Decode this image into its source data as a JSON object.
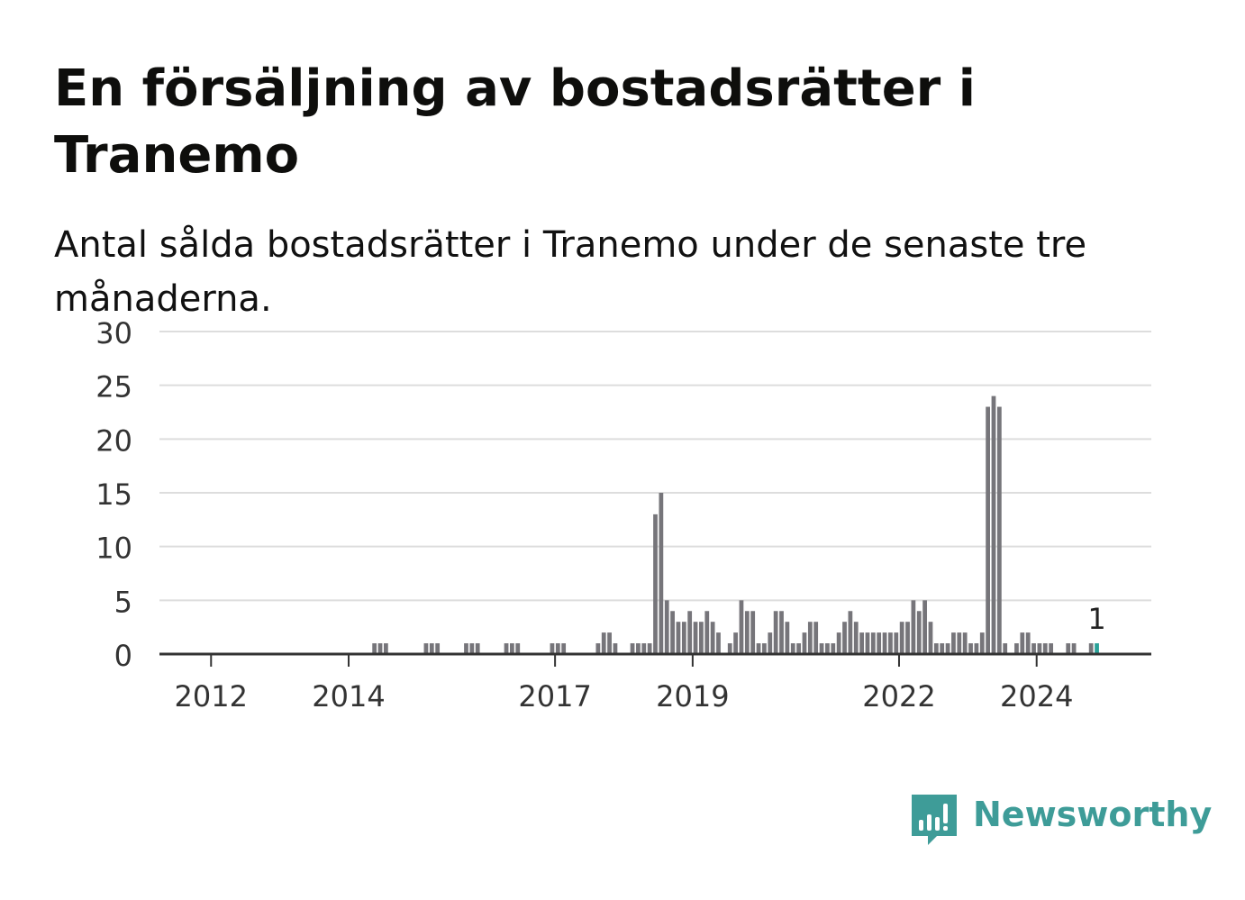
{
  "header": {
    "title": "En försäljning av bostadsrätter i Tranemo",
    "subtitle": "Antal sålda bostadsrätter i Tranemo under de senaste tre månaderna."
  },
  "brand": {
    "name": "Newsworthy",
    "color": "#3e9c98",
    "icon": "newsworthy-logo-icon"
  },
  "colors": {
    "bar": "#76757a",
    "highlight": "#2aa198",
    "grid": "#dddddd",
    "axis": "#333333"
  },
  "chart_data": {
    "type": "bar",
    "title": "En försäljning av bostadsrätter i Tranemo",
    "subtitle": "Antal sålda bostadsrätter i Tranemo under de senaste tre månaderna.",
    "xlabel": "",
    "ylabel": "",
    "ylim": [
      0,
      30
    ],
    "yticks": [
      "0",
      "5",
      "10",
      "15",
      "20",
      "25",
      "30"
    ],
    "xlim": [
      "2011-04",
      "2025-09"
    ],
    "xticks": [
      {
        "label": "2012",
        "date": "2012-01"
      },
      {
        "label": "2014",
        "date": "2014-01"
      },
      {
        "label": "2017",
        "date": "2017-01"
      },
      {
        "label": "2019",
        "date": "2019-01"
      },
      {
        "label": "2022",
        "date": "2022-01"
      },
      {
        "label": "2024",
        "date": "2024-01"
      }
    ],
    "grid": true,
    "series": [
      {
        "values": [
          {
            "x": "2014-05",
            "y": 1
          },
          {
            "x": "2014-06",
            "y": 1
          },
          {
            "x": "2014-07",
            "y": 1
          },
          {
            "x": "2015-02",
            "y": 1
          },
          {
            "x": "2015-03",
            "y": 1
          },
          {
            "x": "2015-04",
            "y": 1
          },
          {
            "x": "2015-09",
            "y": 1
          },
          {
            "x": "2015-10",
            "y": 1
          },
          {
            "x": "2015-11",
            "y": 1
          },
          {
            "x": "2016-04",
            "y": 1
          },
          {
            "x": "2016-05",
            "y": 1
          },
          {
            "x": "2016-06",
            "y": 1
          },
          {
            "x": "2016-12",
            "y": 1
          },
          {
            "x": "2017-01",
            "y": 1
          },
          {
            "x": "2017-02",
            "y": 1
          },
          {
            "x": "2017-08",
            "y": 1
          },
          {
            "x": "2017-09",
            "y": 2
          },
          {
            "x": "2017-10",
            "y": 2
          },
          {
            "x": "2017-11",
            "y": 1
          },
          {
            "x": "2018-02",
            "y": 1
          },
          {
            "x": "2018-03",
            "y": 1
          },
          {
            "x": "2018-04",
            "y": 1
          },
          {
            "x": "2018-05",
            "y": 1
          },
          {
            "x": "2018-06",
            "y": 13
          },
          {
            "x": "2018-07",
            "y": 15
          },
          {
            "x": "2018-08",
            "y": 5
          },
          {
            "x": "2018-09",
            "y": 4
          },
          {
            "x": "2018-10",
            "y": 3
          },
          {
            "x": "2018-11",
            "y": 3
          },
          {
            "x": "2018-12",
            "y": 4
          },
          {
            "x": "2019-01",
            "y": 3
          },
          {
            "x": "2019-02",
            "y": 3
          },
          {
            "x": "2019-03",
            "y": 4
          },
          {
            "x": "2019-04",
            "y": 3
          },
          {
            "x": "2019-05",
            "y": 2
          },
          {
            "x": "2019-07",
            "y": 1
          },
          {
            "x": "2019-08",
            "y": 2
          },
          {
            "x": "2019-09",
            "y": 5
          },
          {
            "x": "2019-10",
            "y": 4
          },
          {
            "x": "2019-11",
            "y": 4
          },
          {
            "x": "2019-12",
            "y": 1
          },
          {
            "x": "2020-01",
            "y": 1
          },
          {
            "x": "2020-02",
            "y": 2
          },
          {
            "x": "2020-03",
            "y": 4
          },
          {
            "x": "2020-04",
            "y": 4
          },
          {
            "x": "2020-05",
            "y": 3
          },
          {
            "x": "2020-06",
            "y": 1
          },
          {
            "x": "2020-07",
            "y": 1
          },
          {
            "x": "2020-08",
            "y": 2
          },
          {
            "x": "2020-09",
            "y": 3
          },
          {
            "x": "2020-10",
            "y": 3
          },
          {
            "x": "2020-11",
            "y": 1
          },
          {
            "x": "2020-12",
            "y": 1
          },
          {
            "x": "2021-01",
            "y": 1
          },
          {
            "x": "2021-02",
            "y": 2
          },
          {
            "x": "2021-03",
            "y": 3
          },
          {
            "x": "2021-04",
            "y": 4
          },
          {
            "x": "2021-05",
            "y": 3
          },
          {
            "x": "2021-06",
            "y": 2
          },
          {
            "x": "2021-07",
            "y": 2
          },
          {
            "x": "2021-08",
            "y": 2
          },
          {
            "x": "2021-09",
            "y": 2
          },
          {
            "x": "2021-10",
            "y": 2
          },
          {
            "x": "2021-11",
            "y": 2
          },
          {
            "x": "2021-12",
            "y": 2
          },
          {
            "x": "2022-01",
            "y": 3
          },
          {
            "x": "2022-02",
            "y": 3
          },
          {
            "x": "2022-03",
            "y": 5
          },
          {
            "x": "2022-04",
            "y": 4
          },
          {
            "x": "2022-05",
            "y": 5
          },
          {
            "x": "2022-06",
            "y": 3
          },
          {
            "x": "2022-07",
            "y": 1
          },
          {
            "x": "2022-08",
            "y": 1
          },
          {
            "x": "2022-09",
            "y": 1
          },
          {
            "x": "2022-10",
            "y": 2
          },
          {
            "x": "2022-11",
            "y": 2
          },
          {
            "x": "2022-12",
            "y": 2
          },
          {
            "x": "2023-01",
            "y": 1
          },
          {
            "x": "2023-02",
            "y": 1
          },
          {
            "x": "2023-03",
            "y": 2
          },
          {
            "x": "2023-04",
            "y": 23
          },
          {
            "x": "2023-05",
            "y": 24
          },
          {
            "x": "2023-06",
            "y": 23
          },
          {
            "x": "2023-07",
            "y": 1
          },
          {
            "x": "2023-09",
            "y": 1
          },
          {
            "x": "2023-10",
            "y": 2
          },
          {
            "x": "2023-11",
            "y": 2
          },
          {
            "x": "2023-12",
            "y": 1
          },
          {
            "x": "2024-01",
            "y": 1
          },
          {
            "x": "2024-02",
            "y": 1
          },
          {
            "x": "2024-03",
            "y": 1
          },
          {
            "x": "2024-06",
            "y": 1
          },
          {
            "x": "2024-07",
            "y": 1
          },
          {
            "x": "2024-10",
            "y": 1
          },
          {
            "x": "2024-11",
            "y": 1,
            "highlight": true,
            "label": "1"
          }
        ]
      }
    ]
  }
}
